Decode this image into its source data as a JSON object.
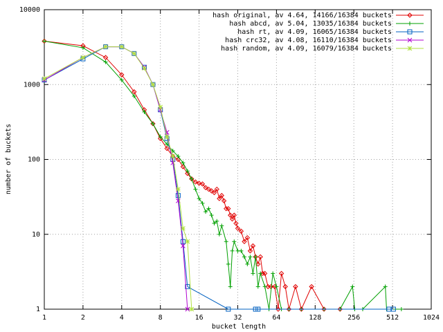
{
  "chart_data": {
    "type": "line",
    "x_label": "bucket length",
    "y_label": "number of buckets",
    "xscale": "log2",
    "yscale": "log10",
    "grid": true,
    "legend": "top-right",
    "xlim": [
      1,
      1024
    ],
    "ylim": [
      1,
      10000
    ],
    "xticks": [
      1,
      2,
      4,
      8,
      16,
      32,
      64,
      128,
      256,
      512,
      1024
    ],
    "yticks": [
      1,
      10,
      100,
      1000,
      10000
    ],
    "series": [
      {
        "name": "hash original, av 4.64, 14166/16384 buckets",
        "color": "#e00000",
        "marker": "diamond",
        "x": [
          1,
          2,
          3,
          4,
          5,
          6,
          7,
          8,
          9,
          10,
          11,
          12,
          13,
          14,
          15,
          16,
          17,
          18,
          19,
          20,
          21,
          22,
          23,
          24,
          25,
          26,
          27,
          28,
          29,
          30,
          31,
          32,
          34,
          36,
          38,
          40,
          42,
          44,
          46,
          48,
          50,
          52,
          55,
          58,
          62,
          66,
          70,
          75,
          80,
          90,
          100,
          120,
          150,
          200
        ],
        "values": [
          3800,
          3300,
          2300,
          1350,
          800,
          460,
          300,
          190,
          140,
          110,
          100,
          80,
          65,
          55,
          50,
          48,
          47,
          42,
          40,
          38,
          36,
          40,
          30,
          33,
          28,
          22,
          22,
          18,
          16,
          18,
          14,
          12,
          11,
          8,
          9,
          6,
          7,
          5,
          4,
          5,
          3,
          3,
          2,
          2,
          2,
          1,
          3,
          2,
          1,
          2,
          1,
          2,
          1,
          1
        ]
      },
      {
        "name": "hash abcd, av 5.04, 13035/16384 buckets",
        "color": "#00a000",
        "marker": "plus",
        "x": [
          1,
          2,
          3,
          4,
          5,
          6,
          7,
          8,
          9,
          10,
          11,
          12,
          13,
          14,
          15,
          16,
          17,
          18,
          19,
          20,
          21,
          22,
          23,
          24,
          26,
          27,
          28,
          29,
          30,
          32,
          34,
          36,
          38,
          40,
          42,
          44,
          46,
          48,
          52,
          56,
          60,
          64,
          70,
          80,
          100,
          150,
          200,
          250,
          260,
          300,
          450,
          460,
          600
        ],
        "values": [
          3800,
          3100,
          2000,
          1150,
          700,
          430,
          300,
          200,
          160,
          130,
          110,
          90,
          70,
          55,
          40,
          30,
          26,
          20,
          22,
          18,
          14,
          15,
          10,
          13,
          8,
          4,
          2,
          6,
          8,
          6,
          6,
          5,
          4,
          5,
          3,
          5,
          2,
          3,
          2,
          1,
          3,
          2,
          1,
          1,
          1,
          1,
          1,
          2,
          1,
          1,
          2,
          1,
          1
        ]
      },
      {
        "name": "hash rt, av 4.09, 16065/16384 buckets",
        "color": "#0060c0",
        "marker": "square",
        "x": [
          1,
          2,
          3,
          4,
          5,
          6,
          7,
          8,
          9,
          10,
          11,
          12,
          13,
          27,
          44,
          46,
          480,
          520
        ],
        "values": [
          1150,
          2200,
          3200,
          3200,
          2600,
          1700,
          1000,
          460,
          190,
          100,
          33,
          8,
          2,
          1,
          1,
          1,
          1,
          1
        ]
      },
      {
        "name": "hash crc32, av 4.08, 16110/16384 buckets",
        "color": "#b000d0",
        "marker": "cross",
        "x": [
          1,
          2,
          3,
          4,
          5,
          6,
          7,
          8,
          9,
          10,
          11,
          12,
          13
        ],
        "values": [
          1150,
          2300,
          3200,
          3200,
          2600,
          1700,
          1000,
          460,
          230,
          90,
          28,
          7,
          1
        ]
      },
      {
        "name": "hash random, av 4.09, 16079/16384 buckets",
        "color": "#b0e040",
        "marker": "star",
        "x": [
          1,
          2,
          3,
          4,
          5,
          6,
          7,
          8,
          9,
          10,
          11,
          12,
          13,
          14
        ],
        "values": [
          1200,
          2300,
          3200,
          3200,
          2600,
          1650,
          1000,
          500,
          200,
          110,
          40,
          12,
          8,
          1
        ]
      }
    ]
  }
}
